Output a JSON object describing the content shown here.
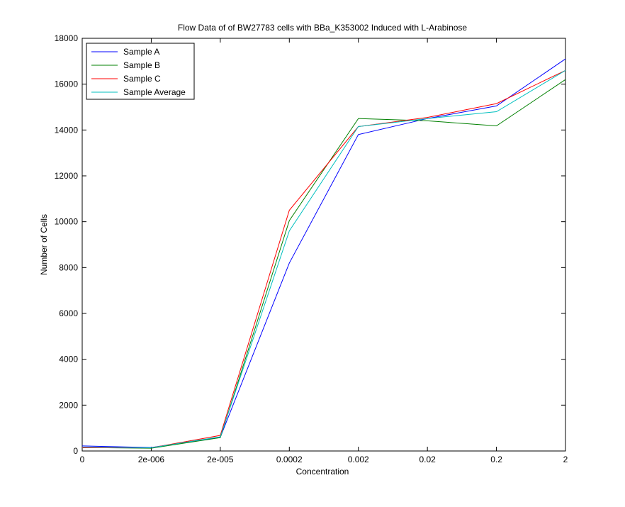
{
  "chart_data": {
    "type": "line",
    "title": "Flow Data of of BW27783 cells with BBa_K353002 Induced with L-Arabinose",
    "xlabel": "Concentration",
    "ylabel": "Number of Cells",
    "x_categories": [
      "0",
      "2e-006",
      "2e-005",
      "0.0002",
      "0.002",
      "0.02",
      "0.2",
      "2"
    ],
    "x_points": [
      0,
      1,
      2,
      3,
      4,
      5,
      6,
      7
    ],
    "xlim": [
      0,
      7
    ],
    "ylim": [
      0,
      18000
    ],
    "yticks": [
      0,
      2000,
      4000,
      6000,
      8000,
      10000,
      12000,
      14000,
      16000,
      18000
    ],
    "series": [
      {
        "name": "Sample A",
        "color": "#0000ff",
        "values": [
          220,
          150,
          600,
          8200,
          13800,
          14500,
          15050,
          17100
        ]
      },
      {
        "name": "Sample B",
        "color": "#008000",
        "values": [
          150,
          120,
          580,
          10050,
          14500,
          14400,
          14180,
          16200
        ]
      },
      {
        "name": "Sample C",
        "color": "#ff0000",
        "values": [
          140,
          140,
          680,
          10500,
          14150,
          14550,
          15150,
          16600
        ]
      },
      {
        "name": "Sample Average",
        "color": "#00bfbf",
        "values": [
          170,
          140,
          620,
          9600,
          14150,
          14500,
          14800,
          16600
        ]
      }
    ],
    "grid": false,
    "legend_position": "top-left"
  }
}
